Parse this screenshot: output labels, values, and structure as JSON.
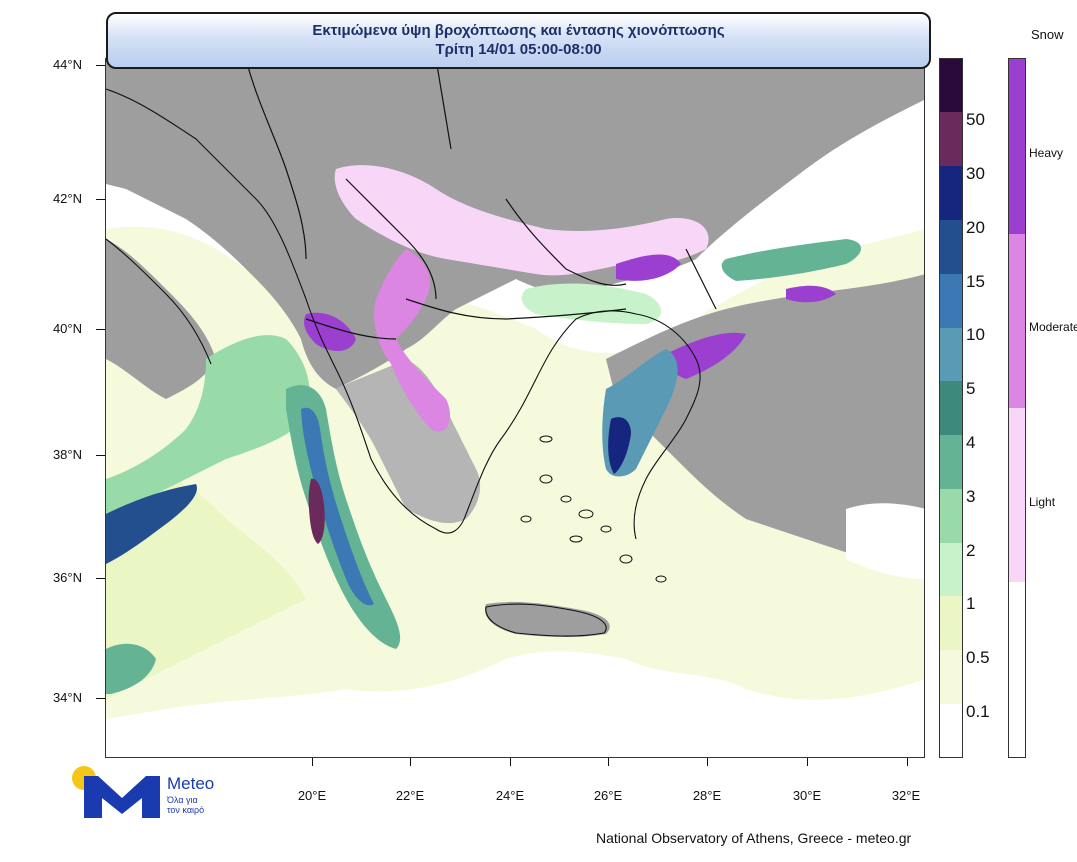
{
  "title": {
    "line1": "Εκτιμώμενα ύψη βροχόπτωσης και έντασης χιονόπτωσης",
    "line2": "Τρίτη 14/01 05:00-08:00"
  },
  "latitude_labels": [
    "44°N",
    "42°N",
    "40°N",
    "38°N",
    "36°N",
    "34°N"
  ],
  "longitude_labels": [
    "20°E",
    "22°E",
    "24°E",
    "26°E",
    "28°E",
    "30°E",
    "32°E"
  ],
  "rain_legend": {
    "levels": [
      "50",
      "30",
      "20",
      "15",
      "10",
      "5",
      "4",
      "3",
      "2",
      "1",
      "0.5",
      "0.1"
    ],
    "colors": [
      "#2a0a3a",
      "#6b2a5c",
      "#16257e",
      "#244f8f",
      "#3c79b4",
      "#5b9ab5",
      "#3d8a7c",
      "#63b394",
      "#98dba9",
      "#c8f2c9",
      "#eaf6c3",
      "#f6fadc",
      "#ffffff"
    ]
  },
  "snow_legend": {
    "title": "Snow",
    "levels": [
      "Heavy",
      "Moderate",
      "Light"
    ],
    "colors": [
      "#9b3fd1",
      "#db86e2",
      "#f8d6f7",
      "#ffffff"
    ]
  },
  "logo": {
    "name": "Meteo",
    "tagline_line1": "Όλα για",
    "tagline_line2": "τον καιρό"
  },
  "footer": "National Observatory of Athens, Greece - meteo.gr"
}
